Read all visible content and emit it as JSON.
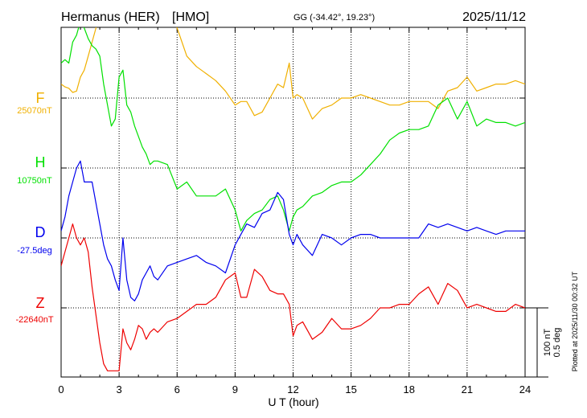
{
  "header": {
    "station": "Hermanus (HER)",
    "code": "[HMO]",
    "coords": "GG (-34.42°,  19.23°)",
    "date": "2025/11/12"
  },
  "scale": {
    "line1": "100 nT",
    "line2": "0.5 deg"
  },
  "plotted_note": "Plotted at 2025/11/30 00:32 UT",
  "chart_data": {
    "type": "line",
    "xlabel": "U T (hour)",
    "xlim": [
      0,
      24
    ],
    "xticks": [
      "0",
      "3",
      "6",
      "9",
      "12",
      "15",
      "18",
      "21",
      "24"
    ],
    "grid": true,
    "units_per_band": "100 nT / 0.5 deg",
    "series": [
      {
        "name": "F",
        "baseline_label": "25070nT",
        "color": "#f0b000",
        "x": [
          0,
          0.2,
          0.4,
          0.6,
          0.8,
          1.0,
          1.2,
          1.4,
          1.6,
          1.8,
          2.0,
          2.2,
          2.4,
          2.6,
          2.8,
          3.0,
          3.2,
          3.4,
          3.6,
          3.8,
          4.0,
          4.2,
          4.4,
          4.6,
          4.8,
          5.0,
          5.5,
          6.0,
          6.5,
          7.0,
          7.5,
          8.0,
          8.5,
          9.0,
          9.3,
          9.6,
          10.0,
          10.4,
          10.8,
          11.2,
          11.5,
          11.8,
          12.0,
          12.2,
          12.5,
          13.0,
          13.5,
          14.0,
          14.5,
          15.0,
          15.5,
          16.0,
          16.5,
          17.0,
          17.5,
          18.0,
          18.5,
          19.0,
          19.5,
          20.0,
          20.5,
          21.0,
          21.5,
          22.0,
          22.5,
          23.0,
          23.5,
          24.0
        ],
        "y": [
          20,
          16,
          14,
          8,
          10,
          30,
          40,
          60,
          80,
          100,
          140,
          180,
          160,
          130,
          110,
          190,
          150,
          180,
          200,
          160,
          150,
          130,
          140,
          150,
          170,
          190,
          145,
          100,
          60,
          45,
          35,
          25,
          10,
          -10,
          -5,
          -5,
          -25,
          -20,
          0,
          20,
          15,
          50,
          0,
          5,
          0,
          -30,
          -15,
          -10,
          0,
          0,
          5,
          0,
          -5,
          -10,
          -10,
          -5,
          -5,
          -5,
          -15,
          10,
          15,
          30,
          10,
          15,
          20,
          20,
          25,
          20
        ]
      },
      {
        "name": "H",
        "baseline_label": "10750nT",
        "color": "#00e000",
        "x": [
          0,
          0.2,
          0.4,
          0.6,
          0.8,
          1.0,
          1.2,
          1.4,
          1.6,
          1.8,
          2.0,
          2.2,
          2.4,
          2.6,
          2.8,
          3.0,
          3.2,
          3.4,
          3.6,
          3.8,
          4.0,
          4.2,
          4.4,
          4.6,
          4.8,
          5.0,
          5.5,
          6.0,
          6.5,
          7.0,
          7.5,
          8.0,
          8.5,
          9.0,
          9.3,
          9.6,
          10.0,
          10.4,
          10.8,
          11.2,
          11.5,
          11.8,
          12.0,
          12.2,
          12.5,
          13.0,
          13.5,
          14.0,
          14.5,
          15.0,
          15.5,
          16.0,
          16.5,
          17.0,
          17.5,
          18.0,
          18.5,
          19.0,
          19.5,
          20.0,
          20.5,
          21.0,
          21.5,
          22.0,
          22.5,
          23.0,
          23.5,
          24.0
        ],
        "y": [
          150,
          155,
          150,
          180,
          190,
          210,
          200,
          185,
          175,
          170,
          160,
          120,
          90,
          60,
          70,
          130,
          140,
          90,
          80,
          60,
          45,
          30,
          20,
          5,
          10,
          10,
          5,
          -30,
          -20,
          -40,
          -40,
          -40,
          -30,
          -60,
          -90,
          -75,
          -65,
          -60,
          -45,
          -40,
          -60,
          -90,
          -70,
          -60,
          -55,
          -40,
          -35,
          -25,
          -20,
          -20,
          -10,
          5,
          20,
          40,
          50,
          55,
          55,
          60,
          90,
          100,
          70,
          95,
          60,
          70,
          65,
          65,
          60,
          65
        ]
      },
      {
        "name": "D",
        "baseline_label": "-27.5deg",
        "color": "#0000ee",
        "x": [
          0,
          0.2,
          0.4,
          0.6,
          0.8,
          1.0,
          1.2,
          1.4,
          1.6,
          1.8,
          2.0,
          2.2,
          2.4,
          2.6,
          2.8,
          3.0,
          3.2,
          3.4,
          3.6,
          3.8,
          4.0,
          4.2,
          4.4,
          4.6,
          4.8,
          5.0,
          5.5,
          6.0,
          6.5,
          7.0,
          7.5,
          8.0,
          8.5,
          9.0,
          9.3,
          9.6,
          10.0,
          10.4,
          10.8,
          11.2,
          11.5,
          11.8,
          12.0,
          12.2,
          12.5,
          13.0,
          13.5,
          14.0,
          14.5,
          15.0,
          15.5,
          16.0,
          16.5,
          17.0,
          17.5,
          18.0,
          18.5,
          19.0,
          19.5,
          20.0,
          20.5,
          21.0,
          21.5,
          22.0,
          22.5,
          23.0,
          23.5,
          24.0
        ],
        "y": [
          10,
          30,
          60,
          80,
          100,
          110,
          80,
          80,
          80,
          50,
          20,
          -10,
          -30,
          -40,
          -60,
          -75,
          0,
          -60,
          -85,
          -90,
          -80,
          -60,
          -50,
          -40,
          -55,
          -60,
          -40,
          -35,
          -30,
          -25,
          -35,
          -40,
          -50,
          -10,
          5,
          20,
          15,
          35,
          40,
          65,
          55,
          5,
          -10,
          5,
          -10,
          -25,
          5,
          0,
          -10,
          0,
          5,
          5,
          0,
          0,
          0,
          0,
          0,
          20,
          15,
          20,
          15,
          10,
          15,
          10,
          5,
          10,
          10,
          10
        ]
      },
      {
        "name": "Z",
        "baseline_label": "-22640nT",
        "color": "#ee0000",
        "x": [
          0,
          0.2,
          0.4,
          0.6,
          0.8,
          1.0,
          1.2,
          1.4,
          1.6,
          1.8,
          2.0,
          2.2,
          2.4,
          2.6,
          2.8,
          3.0,
          3.2,
          3.4,
          3.6,
          3.8,
          4.0,
          4.2,
          4.4,
          4.6,
          4.8,
          5.0,
          5.5,
          6.0,
          6.5,
          7.0,
          7.5,
          8.0,
          8.5,
          9.0,
          9.3,
          9.6,
          10.0,
          10.4,
          10.8,
          11.2,
          11.5,
          11.8,
          12.0,
          12.2,
          12.5,
          13.0,
          13.5,
          14.0,
          14.5,
          15.0,
          15.5,
          16.0,
          16.5,
          17.0,
          17.5,
          18.0,
          18.5,
          19.0,
          19.5,
          20.0,
          20.5,
          21.0,
          21.5,
          22.0,
          22.5,
          23.0,
          23.5,
          24.0
        ],
        "y": [
          60,
          80,
          100,
          120,
          100,
          90,
          100,
          80,
          30,
          -10,
          -50,
          -80,
          -90,
          -90,
          -90,
          -90,
          -30,
          -50,
          -60,
          -45,
          -25,
          -30,
          -45,
          -35,
          -30,
          -35,
          -20,
          -15,
          -5,
          5,
          5,
          15,
          40,
          50,
          15,
          15,
          55,
          45,
          25,
          20,
          20,
          5,
          -40,
          -25,
          -20,
          -45,
          -35,
          -15,
          -30,
          -30,
          -25,
          -15,
          0,
          0,
          5,
          5,
          20,
          30,
          5,
          35,
          25,
          0,
          5,
          0,
          -5,
          -5,
          5,
          0
        ]
      }
    ]
  }
}
